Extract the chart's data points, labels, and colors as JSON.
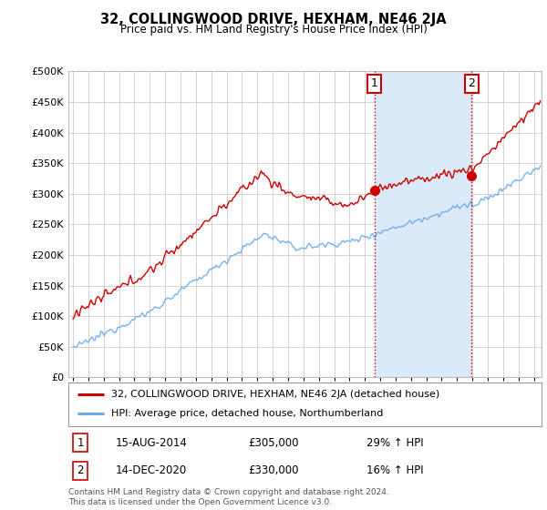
{
  "title": "32, COLLINGWOOD DRIVE, HEXHAM, NE46 2JA",
  "subtitle": "Price paid vs. HM Land Registry's House Price Index (HPI)",
  "legend_line1": "32, COLLINGWOOD DRIVE, HEXHAM, NE46 2JA (detached house)",
  "legend_line2": "HPI: Average price, detached house, Northumberland",
  "annotation1_date": "15-AUG-2014",
  "annotation1_price": "£305,000",
  "annotation1_hpi": "29% ↑ HPI",
  "annotation2_date": "14-DEC-2020",
  "annotation2_price": "£330,000",
  "annotation2_hpi": "16% ↑ HPI",
  "footnote": "Contains HM Land Registry data © Crown copyright and database right 2024.\nThis data is licensed under the Open Government Licence v3.0.",
  "property_color": "#cc0000",
  "hpi_color": "#6aabe8",
  "shade_color": "#daeaf8",
  "vline_color": "#cc0000",
  "ylim": [
    0,
    500000
  ],
  "yticks": [
    0,
    50000,
    100000,
    150000,
    200000,
    250000,
    300000,
    350000,
    400000,
    450000,
    500000
  ],
  "xlim_start": 1994.7,
  "xlim_end": 2025.5,
  "background_color": "#ffffff",
  "grid_color": "#cccccc",
  "sale1_x": 2014.62,
  "sale1_y": 305000,
  "sale2_x": 2020.96,
  "sale2_y": 330000
}
